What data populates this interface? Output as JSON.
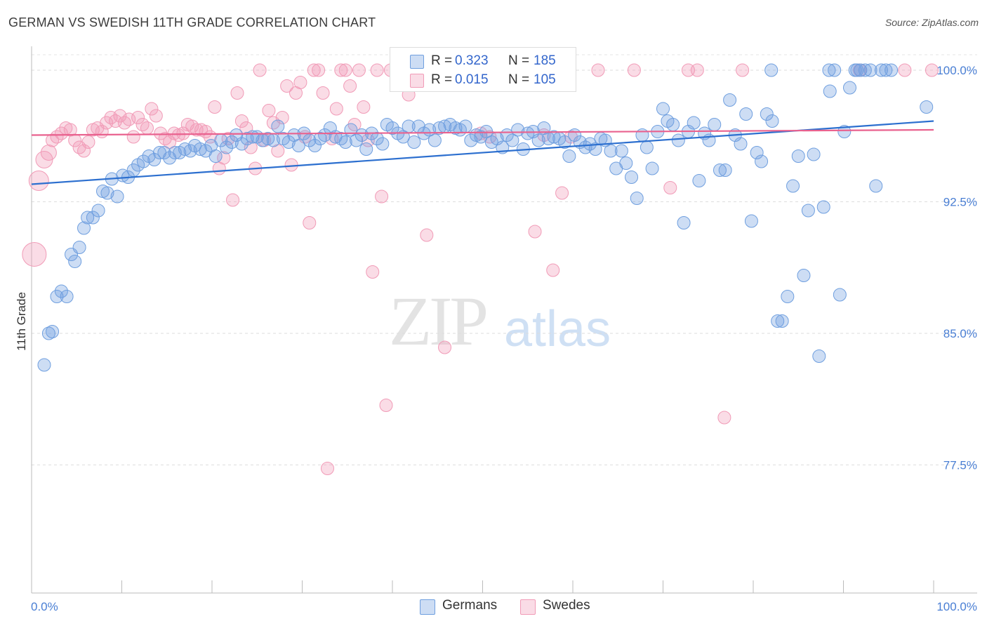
{
  "title": "GERMAN VS SWEDISH 11TH GRADE CORRELATION CHART",
  "source": "Source: ZipAtlas.com",
  "watermark": {
    "zip": "ZIP",
    "atlas": "atlas"
  },
  "colors": {
    "germans": "#6f9fdf",
    "swedes": "#f19bb7",
    "germans_line": "#2c6fcf",
    "swedes_line": "#e9628f",
    "tick": "#4a7fd4"
  },
  "legend": {
    "germans": {
      "r_label": "R =",
      "r_value": "0.323",
      "n_label": "N =",
      "n_value": "185"
    },
    "swedes": {
      "r_label": "R =",
      "r_value": "0.015",
      "n_label": "N =",
      "n_value": "105"
    }
  },
  "bottom_legend": {
    "germans": "Germans",
    "swedes": "Swedes"
  },
  "chart_data": {
    "type": "scatter",
    "title": "GERMAN VS SWEDISH 11TH GRADE CORRELATION CHART",
    "xlabel": "",
    "ylabel": "11th Grade",
    "xlim": [
      0,
      100
    ],
    "ylim": [
      70.2,
      101.2
    ],
    "x_tick_labels": [
      "0.0%",
      "100.0%"
    ],
    "y_ticks": [
      100.0,
      92.5,
      85.0,
      77.5
    ],
    "y_tick_labels": [
      "100.0%",
      "92.5%",
      "85.0%",
      "77.5%"
    ],
    "grid": "horizontal dashed",
    "legend_position": "top-center",
    "series": [
      {
        "name": "Germans",
        "trend": {
          "x": [
            0,
            100
          ],
          "y": [
            93.5,
            97.1
          ]
        },
        "points": [
          [
            1.4,
            83.2
          ],
          [
            1.9,
            85.0
          ],
          [
            2.3,
            85.1
          ],
          [
            2.8,
            87.1
          ],
          [
            3.3,
            87.4
          ],
          [
            3.9,
            87.1
          ],
          [
            4.4,
            89.5
          ],
          [
            4.8,
            89.1
          ],
          [
            5.3,
            89.9
          ],
          [
            5.8,
            91.0
          ],
          [
            6.2,
            91.6
          ],
          [
            6.8,
            91.6
          ],
          [
            7.4,
            92.0
          ],
          [
            7.9,
            93.1
          ],
          [
            8.4,
            93.0
          ],
          [
            8.9,
            93.8
          ],
          [
            9.5,
            92.8
          ],
          [
            10.1,
            94.0
          ],
          [
            10.7,
            93.9
          ],
          [
            11.3,
            94.3
          ],
          [
            11.8,
            94.6
          ],
          [
            12.4,
            94.8
          ],
          [
            13.0,
            95.1
          ],
          [
            13.6,
            94.9
          ],
          [
            14.2,
            95.3
          ],
          [
            14.7,
            95.3
          ],
          [
            15.3,
            95.0
          ],
          [
            15.9,
            95.3
          ],
          [
            16.4,
            95.3
          ],
          [
            17.0,
            95.5
          ],
          [
            17.6,
            95.4
          ],
          [
            18.1,
            95.7
          ],
          [
            18.7,
            95.5
          ],
          [
            19.3,
            95.4
          ],
          [
            19.9,
            95.7
          ],
          [
            20.4,
            95.1
          ],
          [
            21.0,
            96.0
          ],
          [
            21.6,
            95.6
          ],
          [
            22.2,
            95.9
          ],
          [
            22.7,
            96.3
          ],
          [
            23.3,
            95.8
          ],
          [
            23.9,
            96.1
          ],
          [
            24.5,
            96.2
          ],
          [
            25.0,
            96.2
          ],
          [
            25.6,
            96.0
          ],
          [
            26.2,
            96.1
          ],
          [
            26.8,
            96.0
          ],
          [
            27.3,
            96.8
          ],
          [
            27.9,
            96.1
          ],
          [
            28.5,
            95.9
          ],
          [
            29.1,
            96.3
          ],
          [
            29.6,
            95.7
          ],
          [
            30.2,
            96.4
          ],
          [
            30.8,
            96.0
          ],
          [
            31.4,
            95.7
          ],
          [
            32.0,
            96.1
          ],
          [
            32.5,
            96.3
          ],
          [
            33.1,
            96.7
          ],
          [
            33.7,
            96.2
          ],
          [
            34.3,
            96.1
          ],
          [
            34.8,
            95.9
          ],
          [
            35.4,
            96.6
          ],
          [
            36.0,
            96.0
          ],
          [
            36.6,
            96.3
          ],
          [
            37.1,
            95.5
          ],
          [
            37.7,
            96.4
          ],
          [
            38.3,
            96.1
          ],
          [
            38.9,
            95.8
          ],
          [
            39.4,
            96.9
          ],
          [
            40.0,
            96.7
          ],
          [
            40.6,
            96.4
          ],
          [
            41.2,
            96.2
          ],
          [
            41.8,
            96.8
          ],
          [
            42.4,
            95.9
          ],
          [
            42.9,
            96.8
          ],
          [
            43.5,
            96.4
          ],
          [
            44.1,
            96.6
          ],
          [
            44.7,
            96.0
          ],
          [
            45.2,
            96.7
          ],
          [
            45.8,
            96.8
          ],
          [
            46.4,
            96.9
          ],
          [
            47.0,
            96.7
          ],
          [
            47.5,
            96.6
          ],
          [
            48.1,
            96.8
          ],
          [
            48.7,
            96.0
          ],
          [
            49.3,
            96.3
          ],
          [
            49.8,
            96.2
          ],
          [
            50.4,
            96.5
          ],
          [
            51.0,
            95.9
          ],
          [
            51.6,
            96.1
          ],
          [
            52.2,
            95.6
          ],
          [
            52.7,
            96.3
          ],
          [
            53.3,
            96.0
          ],
          [
            53.9,
            96.6
          ],
          [
            54.5,
            95.5
          ],
          [
            55.0,
            96.4
          ],
          [
            55.6,
            96.5
          ],
          [
            56.2,
            96.0
          ],
          [
            56.8,
            96.7
          ],
          [
            57.3,
            96.1
          ],
          [
            57.9,
            96.2
          ],
          [
            58.5,
            96.1
          ],
          [
            59.1,
            95.9
          ],
          [
            59.6,
            95.1
          ],
          [
            60.2,
            96.3
          ],
          [
            60.8,
            95.9
          ],
          [
            61.4,
            95.6
          ],
          [
            61.9,
            95.8
          ],
          [
            62.5,
            95.5
          ],
          [
            63.1,
            96.1
          ],
          [
            63.6,
            96.0
          ],
          [
            64.2,
            95.4
          ],
          [
            64.8,
            94.4
          ],
          [
            65.4,
            95.4
          ],
          [
            65.9,
            94.7
          ],
          [
            66.5,
            93.9
          ],
          [
            67.1,
            92.7
          ],
          [
            67.7,
            96.3
          ],
          [
            68.2,
            95.6
          ],
          [
            68.8,
            94.4
          ],
          [
            69.4,
            96.5
          ],
          [
            70.0,
            97.8
          ],
          [
            70.5,
            97.1
          ],
          [
            71.1,
            96.9
          ],
          [
            71.7,
            96.0
          ],
          [
            72.3,
            91.3
          ],
          [
            72.8,
            96.5
          ],
          [
            73.4,
            97.0
          ],
          [
            74.0,
            93.7
          ],
          [
            74.6,
            96.4
          ],
          [
            75.1,
            96.0
          ],
          [
            75.7,
            96.9
          ],
          [
            76.3,
            94.3
          ],
          [
            76.9,
            94.3
          ],
          [
            77.4,
            98.3
          ],
          [
            78.0,
            96.3
          ],
          [
            78.6,
            95.8
          ],
          [
            79.2,
            97.5
          ],
          [
            79.8,
            91.4
          ],
          [
            80.4,
            95.3
          ],
          [
            80.9,
            94.8
          ],
          [
            81.5,
            97.5
          ],
          [
            82.1,
            97.1
          ],
          [
            82.7,
            85.7
          ],
          [
            83.2,
            85.7
          ],
          [
            83.8,
            87.1
          ],
          [
            84.4,
            93.4
          ],
          [
            85.0,
            95.1
          ],
          [
            85.6,
            88.3
          ],
          [
            86.1,
            92.0
          ],
          [
            86.7,
            95.2
          ],
          [
            87.3,
            83.7
          ],
          [
            87.8,
            92.2
          ],
          [
            88.4,
            100.0
          ],
          [
            89.0,
            100.0
          ],
          [
            89.6,
            87.2
          ],
          [
            90.1,
            96.5
          ],
          [
            90.7,
            99.0
          ],
          [
            91.3,
            100.0
          ],
          [
            91.9,
            100.0
          ],
          [
            92.4,
            100.0
          ],
          [
            93.0,
            100.0
          ],
          [
            93.6,
            93.4
          ],
          [
            94.2,
            100.0
          ],
          [
            94.7,
            100.0
          ],
          [
            95.3,
            100.0
          ],
          [
            82.0,
            100.0
          ],
          [
            88.5,
            98.8
          ],
          [
            91.5,
            100.0
          ],
          [
            99.2,
            97.9
          ]
        ]
      },
      {
        "name": "Swedes",
        "trend": {
          "x": [
            0,
            100
          ],
          "y": [
            96.3,
            96.6
          ]
        },
        "points": [
          [
            0.3,
            89.5
          ],
          [
            0.8,
            93.7
          ],
          [
            1.4,
            94.9
          ],
          [
            1.9,
            95.3
          ],
          [
            2.3,
            96.0
          ],
          [
            2.8,
            96.2
          ],
          [
            3.3,
            96.4
          ],
          [
            3.8,
            96.7
          ],
          [
            4.3,
            96.6
          ],
          [
            4.8,
            96.0
          ],
          [
            5.3,
            95.6
          ],
          [
            5.8,
            95.4
          ],
          [
            6.3,
            95.9
          ],
          [
            6.8,
            96.6
          ],
          [
            7.3,
            96.7
          ],
          [
            7.8,
            96.5
          ],
          [
            8.3,
            97.0
          ],
          [
            8.8,
            97.3
          ],
          [
            9.3,
            97.1
          ],
          [
            9.8,
            97.4
          ],
          [
            10.3,
            97.0
          ],
          [
            10.8,
            97.2
          ],
          [
            11.3,
            96.2
          ],
          [
            11.8,
            97.3
          ],
          [
            12.3,
            96.9
          ],
          [
            12.8,
            96.7
          ],
          [
            13.3,
            97.8
          ],
          [
            13.8,
            97.4
          ],
          [
            14.3,
            96.4
          ],
          [
            14.8,
            96.1
          ],
          [
            15.3,
            95.9
          ],
          [
            15.8,
            96.4
          ],
          [
            16.3,
            96.3
          ],
          [
            16.8,
            96.4
          ],
          [
            17.3,
            96.9
          ],
          [
            17.8,
            96.8
          ],
          [
            18.3,
            96.6
          ],
          [
            18.8,
            96.6
          ],
          [
            19.3,
            96.5
          ],
          [
            19.8,
            96.2
          ],
          [
            20.3,
            97.9
          ],
          [
            20.8,
            94.4
          ],
          [
            21.3,
            95.0
          ],
          [
            21.8,
            96.1
          ],
          [
            22.3,
            92.6
          ],
          [
            22.8,
            98.7
          ],
          [
            23.3,
            97.1
          ],
          [
            23.8,
            96.7
          ],
          [
            24.3,
            95.6
          ],
          [
            24.8,
            94.4
          ],
          [
            25.3,
            100.0
          ],
          [
            25.8,
            96.0
          ],
          [
            26.3,
            97.7
          ],
          [
            26.8,
            97.0
          ],
          [
            27.3,
            95.4
          ],
          [
            27.8,
            97.3
          ],
          [
            28.3,
            99.1
          ],
          [
            28.8,
            94.6
          ],
          [
            29.3,
            98.7
          ],
          [
            29.8,
            99.3
          ],
          [
            30.3,
            96.2
          ],
          [
            30.8,
            91.3
          ],
          [
            31.3,
            100.0
          ],
          [
            31.8,
            100.0
          ],
          [
            32.3,
            98.7
          ],
          [
            32.8,
            77.3
          ],
          [
            33.3,
            96.1
          ],
          [
            33.8,
            97.8
          ],
          [
            34.3,
            100.0
          ],
          [
            34.8,
            100.0
          ],
          [
            35.3,
            99.1
          ],
          [
            35.8,
            96.9
          ],
          [
            36.3,
            100.0
          ],
          [
            36.8,
            97.9
          ],
          [
            37.3,
            96.0
          ],
          [
            37.8,
            88.5
          ],
          [
            38.3,
            100.0
          ],
          [
            38.8,
            92.8
          ],
          [
            39.3,
            80.9
          ],
          [
            39.8,
            100.0
          ],
          [
            40.8,
            100.0
          ],
          [
            41.8,
            98.6
          ],
          [
            42.8,
            100.0
          ],
          [
            43.8,
            90.6
          ],
          [
            44.8,
            100.0
          ],
          [
            45.8,
            84.2
          ],
          [
            46.8,
            100.0
          ],
          [
            47.8,
            100.0
          ],
          [
            48.8,
            100.0
          ],
          [
            49.8,
            96.4
          ],
          [
            50.8,
            96.2
          ],
          [
            51.8,
            100.0
          ],
          [
            52.8,
            100.0
          ],
          [
            53.8,
            100.0
          ],
          [
            54.8,
            100.0
          ],
          [
            55.8,
            90.8
          ],
          [
            56.8,
            96.3
          ],
          [
            57.8,
            88.6
          ],
          [
            58.8,
            93.0
          ],
          [
            59.8,
            96.2
          ],
          [
            62.8,
            100.0
          ],
          [
            66.8,
            100.0
          ],
          [
            70.8,
            93.3
          ],
          [
            72.8,
            100.0
          ],
          [
            73.8,
            100.0
          ],
          [
            76.8,
            80.2
          ],
          [
            78.8,
            100.0
          ],
          [
            91.8,
            100.0
          ],
          [
            96.8,
            100.0
          ],
          [
            99.8,
            100.0
          ]
        ]
      }
    ]
  }
}
